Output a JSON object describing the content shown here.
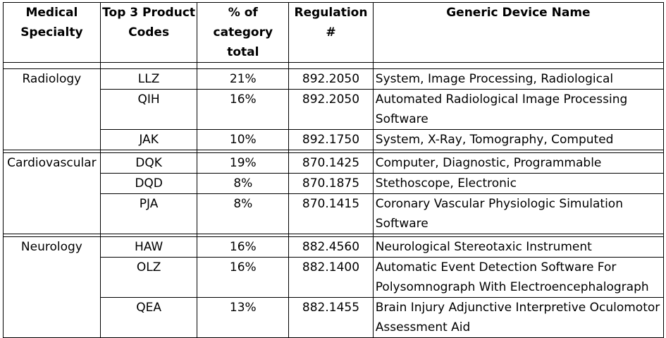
{
  "headers": [
    "Medical Specialty",
    "Top 3 Product Codes",
    "% of category total",
    "Regulation #",
    "Generic Device Name"
  ],
  "groups": [
    {
      "specialty": "Radiology",
      "rows": [
        {
          "code": "LLZ",
          "pct": "21%",
          "reg": "892.2050",
          "name": "System, Image Processing, Radiological"
        },
        {
          "code": "QIH",
          "pct": "16%",
          "reg": "892.2050",
          "name": "Automated Radiological Image Processing Software"
        },
        {
          "code": "JAK",
          "pct": "10%",
          "reg": "892.1750",
          "name": "System, X-Ray, Tomography, Computed"
        }
      ]
    },
    {
      "specialty": "Cardiovascular",
      "rows": [
        {
          "code": "DQK",
          "pct": "19%",
          "reg": "870.1425",
          "name": "Computer, Diagnostic, Programmable"
        },
        {
          "code": "DQD",
          "pct": "8%",
          "reg": "870.1875",
          "name": "Stethoscope, Electronic"
        },
        {
          "code": "PJA",
          "pct": "8%",
          "reg": "870.1415",
          "name": "Coronary Vascular Physiologic Simulation Software"
        }
      ]
    },
    {
      "specialty": "Neurology",
      "rows": [
        {
          "code": "HAW",
          "pct": "16%",
          "reg": "882.4560",
          "name": "Neurological Stereotaxic Instrument"
        },
        {
          "code": "OLZ",
          "pct": "16%",
          "reg": "882.1400",
          "name": "Automatic Event Detection Software For Polysomnograph With Electroencephalograph"
        },
        {
          "code": "QEA",
          "pct": "13%",
          "reg": "882.1455",
          "name": "Brain Injury Adjunctive Interpretive Oculomotor Assessment Aid"
        }
      ]
    }
  ]
}
